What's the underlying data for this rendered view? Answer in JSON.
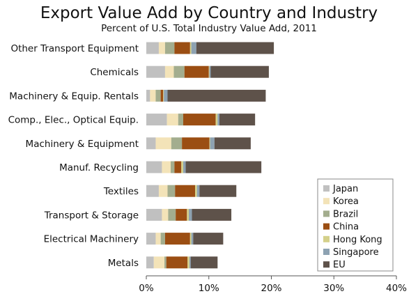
{
  "chart_data": {
    "type": "bar",
    "orientation": "horizontal",
    "stacked": true,
    "title": "Export Value Add by Country and Industry",
    "subtitle": "Percent of U.S. Total Industry Value Add, 2011",
    "xlabel": "",
    "ylabel": "",
    "xlim": [
      0,
      40
    ],
    "x_ticks": [
      0,
      10,
      20,
      30,
      40
    ],
    "x_tick_labels": [
      "0%",
      "10%",
      "20%",
      "30%",
      "40%"
    ],
    "grid": false,
    "legend_position": "bottom-right",
    "categories": [
      "Other Transport Equipment",
      "Chemicals",
      "Machinery & Equip. Rentals",
      "Comp., Elec., Optical Equip.",
      "Machinery & Equipment",
      "Manuf. Recycling",
      "Textiles",
      "Transport & Storage",
      "Electrical Machinery",
      "Metals"
    ],
    "series": [
      {
        "name": "Japan",
        "color": "#c0c0c0",
        "values": [
          2.0,
          3.0,
          0.6,
          3.3,
          1.5,
          2.5,
          2.0,
          2.5,
          1.5,
          1.2
        ]
      },
      {
        "name": "Korea",
        "color": "#f3e3b8",
        "values": [
          1.0,
          1.4,
          0.9,
          1.8,
          2.5,
          1.4,
          1.4,
          1.0,
          0.8,
          1.7
        ]
      },
      {
        "name": "Brazil",
        "color": "#a3ad8e",
        "values": [
          1.5,
          1.7,
          0.8,
          0.8,
          1.7,
          0.6,
          1.2,
          1.2,
          0.7,
          0.3
        ]
      },
      {
        "name": "China",
        "color": "#9b4e13",
        "values": [
          2.5,
          3.9,
          0.4,
          5.2,
          4.4,
          1.1,
          3.2,
          1.8,
          4.0,
          3.4
        ]
      },
      {
        "name": "Hong Kong",
        "color": "#d4d08a",
        "values": [
          0.2,
          0.1,
          0.1,
          0.3,
          0.1,
          0.3,
          0.3,
          0.3,
          0.2,
          0.3
        ]
      },
      {
        "name": "Singapore",
        "color": "#8da2b2",
        "values": [
          0.8,
          0.2,
          0.6,
          0.3,
          0.7,
          0.4,
          0.4,
          0.5,
          0.3,
          0.2
        ]
      },
      {
        "name": "EU",
        "color": "#5e524a",
        "values": [
          12.4,
          9.3,
          15.7,
          5.7,
          5.8,
          12.1,
          5.9,
          6.3,
          4.8,
          4.3
        ]
      }
    ]
  }
}
